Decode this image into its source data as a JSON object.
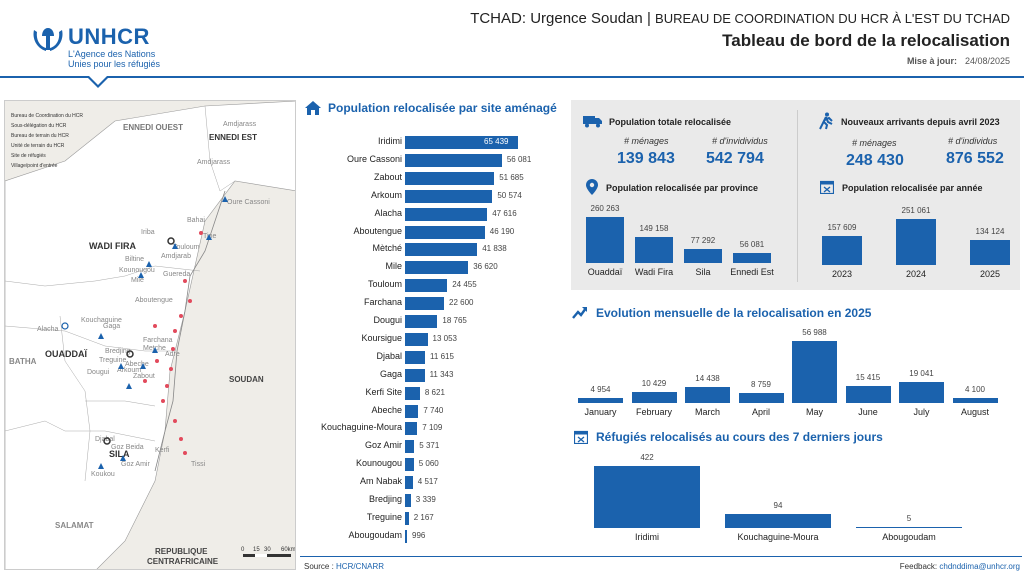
{
  "brand": {
    "name": "UNHCR",
    "tagline1": "L'Agence des Nations",
    "tagline2": "Unies pour les réfugiés",
    "color": "#1b62ad"
  },
  "header": {
    "title_main": "TCHAD: Urgence Soudan",
    "title_sep": "|",
    "title_office": "BUREAU DE COORDINATION DU HCR À L'EST DU TCHAD",
    "title_sub": "Tableau de bord de la relocalisation",
    "update_label": "Mise à jour:",
    "update_date": "24/08/2025"
  },
  "map": {
    "legend": [
      "Bureau de Coordination du HCR",
      "Sous-délégation du HCR",
      "Bureau de terrain du HCR",
      "Unité de terrain du HCR",
      "Site de réfugiés",
      "Village/point d'entrée"
    ],
    "regions": [
      "ENNEDI OUEST",
      "ENNEDI EST",
      "WADI FIRA",
      "OUADDAÏ",
      "SILA",
      "BATHA",
      "SALAMAT",
      "SOUDAN",
      "REPUBLIQUE",
      "CENTRAFRICAINE"
    ],
    "towns": [
      "Amdjarass",
      "Amdjarass",
      "Oure Cassoni",
      "Bahai",
      "Tine",
      "Iriba",
      "Touloum",
      "Amdjarab",
      "Guereda",
      "Biltine",
      "Kounougou",
      "Mile",
      "Kouchaguine",
      "Djabal",
      "Goz Beida",
      "Goz Amir",
      "Koukou",
      "Abeche",
      "Farchana",
      "Adre",
      "Gaga",
      "Treguine",
      "Bredjing",
      "Dougui",
      "Arkoum",
      "Alacha",
      "Aboutengue",
      "Metche",
      "Zabout",
      "Kerfi",
      "Tissi"
    ],
    "scale": [
      "0",
      "15",
      "30",
      "60km"
    ]
  },
  "sites_chart": {
    "title": "Population relocalisée par site aménagé",
    "color": "#1b62ad"
  },
  "chart_data": [
    {
      "type": "bar",
      "title": "Population relocalisée par site aménagé",
      "orientation": "horizontal",
      "categories": [
        "Iridimi",
        "Oure Cassoni",
        "Zabout",
        "Arkoum",
        "Alacha",
        "Aboutengue",
        "Mètché",
        "Mile",
        "Touloum",
        "Farchana",
        "Dougui",
        "Koursigue",
        "Djabal",
        "Gaga",
        "Kerfi Site",
        "Abeche",
        "Kouchaguine-Moura",
        "Goz Amir",
        "Kounougou",
        "Am Nabak",
        "Bredjing",
        "Treguine",
        "Abougoudam"
      ],
      "values": [
        65439,
        56081,
        51685,
        50574,
        47616,
        46190,
        41838,
        36620,
        24455,
        22600,
        18765,
        13053,
        11615,
        11343,
        8621,
        7740,
        7109,
        5371,
        5060,
        4517,
        3339,
        2167,
        996
      ],
      "labels": [
        "65 439",
        "56 081",
        "51 685",
        "50 574",
        "47 616",
        "46 190",
        "41 838",
        "36 620",
        "24 455",
        "22 600",
        "18 765",
        "13 053",
        "11 615",
        "11 343",
        "8 621",
        "7 740",
        "7 109",
        "5 371",
        "5 060",
        "4 517",
        "3 339",
        "2 167",
        "996"
      ]
    },
    {
      "type": "bar",
      "title": "Population relocalisée par province",
      "categories": [
        "Ouaddaï",
        "Wadi Fira",
        "Sila",
        "Ennedi Est"
      ],
      "values": [
        260263,
        149158,
        77292,
        56081
      ],
      "labels": [
        "260 263",
        "149 158",
        "77 292",
        "56 081"
      ]
    },
    {
      "type": "bar",
      "title": "Population relocalisée par année",
      "categories": [
        "2023",
        "2024",
        "2025"
      ],
      "values": [
        157609,
        251061,
        134124
      ],
      "labels": [
        "157 609",
        "251 061",
        "134 124"
      ]
    },
    {
      "type": "bar",
      "title": "Evolution mensuelle de la relocalisation en 2025",
      "categories": [
        "January",
        "February",
        "March",
        "April",
        "May",
        "June",
        "July",
        "August"
      ],
      "values": [
        4954,
        10429,
        14438,
        8759,
        56988,
        15415,
        19041,
        4100
      ],
      "labels": [
        "4 954",
        "10 429",
        "14 438",
        "8 759",
        "56 988",
        "15 415",
        "19 041",
        "4 100"
      ]
    },
    {
      "type": "bar",
      "title": "Réfugiés relocalisés au cours des 7 derniers jours",
      "categories": [
        "Iridimi",
        "Kouchaguine-Moura",
        "Abougoudam"
      ],
      "values": [
        422,
        94,
        5
      ],
      "labels": [
        "422",
        "94",
        "5"
      ]
    }
  ],
  "kpi": {
    "total": {
      "title": "Population totale relocalisée",
      "households_label": "# ménages",
      "individuals_label": "# d'invidividus",
      "households": "139 843",
      "individuals": "542 794"
    },
    "new": {
      "title": "Nouveaux arrivants depuis avril 2023",
      "households_label": "# ménages",
      "individuals_label": "# d'individus",
      "households": "248 430",
      "individuals": "876 552"
    },
    "province_title": "Population relocalisée par province",
    "year_title": "Population relocalisée par année"
  },
  "monthly": {
    "title": "Evolution mensuelle de la relocalisation en 2025"
  },
  "last7": {
    "title": "Réfugiés relocalisés au cours des 7 derniers jours"
  },
  "footer": {
    "source_label": "Source :",
    "source": "HCR/CNARR",
    "feedback_label": "Feedback:",
    "feedback": "chdnddima@unhcr.org"
  }
}
